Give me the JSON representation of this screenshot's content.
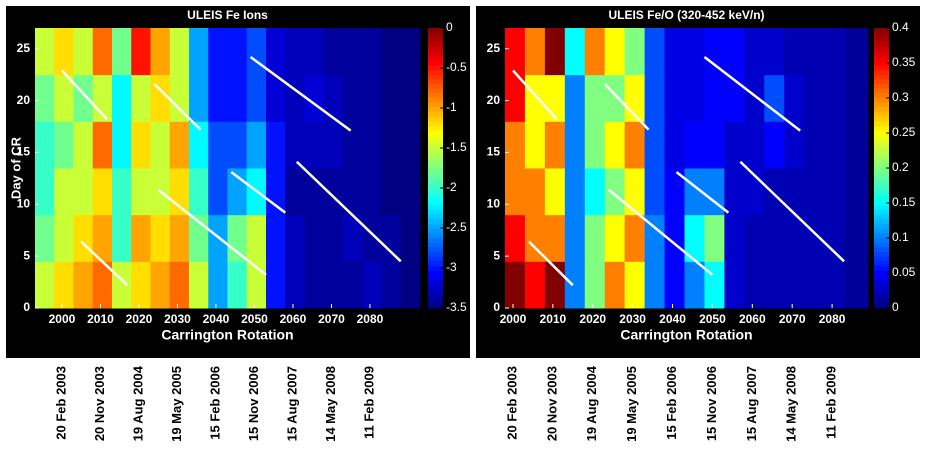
{
  "chart_data": [
    {
      "type": "heatmap",
      "title": "ULEIS Fe Ions",
      "xlabel": "Carrington Rotation",
      "ylabel": "Day of CR",
      "colormap": "jet",
      "xlim": [
        1993,
        2093
      ],
      "ylim": [
        0,
        27
      ],
      "xticks": [
        2000,
        2010,
        2020,
        2030,
        2040,
        2050,
        2060,
        2070,
        2080
      ],
      "yticks": [
        0,
        5,
        10,
        15,
        20,
        25
      ],
      "zlim": [
        -3.5,
        0
      ],
      "zticks": [
        0,
        -0.5,
        -1,
        -1.5,
        -2,
        -2.5,
        -3,
        -3.5
      ],
      "xbins": [
        1993,
        1998,
        2003,
        2008,
        2013,
        2018,
        2023,
        2028,
        2033,
        2038,
        2043,
        2048,
        2053,
        2058,
        2063,
        2068,
        2073,
        2078,
        2083,
        2088,
        2093
      ],
      "ybins": [
        0,
        4.5,
        9,
        13.5,
        18,
        22.5,
        27
      ],
      "z": [
        [
          -1.5,
          -1.2,
          -1,
          -0.8,
          -1.5,
          -1.2,
          -1,
          -0.8,
          -1.5,
          -2.5,
          -2,
          -1.5,
          -3,
          -3.3,
          -3.4,
          -3.4,
          -3.4,
          -3.3,
          -3.4,
          -3.5
        ],
        [
          -1.8,
          -1.5,
          -1.2,
          -1,
          -2,
          -1,
          -1.2,
          -1,
          -1.8,
          -2.5,
          -1.8,
          -1.5,
          -3,
          -3.3,
          -3.4,
          -3.4,
          -3.3,
          -3.4,
          -3.4,
          -3.5
        ],
        [
          -2,
          -1.5,
          -1.5,
          -1.2,
          -2,
          -1.5,
          -1.5,
          -1.2,
          -2,
          -2.8,
          -2.5,
          -2.2,
          -3,
          -3.4,
          -3.4,
          -3.4,
          -3.4,
          -3.4,
          -3.5,
          -3.5
        ],
        [
          -2,
          -1.8,
          -1.5,
          -0.8,
          -2.2,
          -1.2,
          -1.5,
          -1,
          -2.2,
          -2.8,
          -2.8,
          -2.5,
          -3,
          -3.3,
          -3.3,
          -3.3,
          -3.4,
          -3.4,
          -3.5,
          -3.5
        ],
        [
          -1.8,
          -1.5,
          -1.8,
          -1.5,
          -2.2,
          -1.5,
          -1.2,
          -1.5,
          -2.5,
          -3,
          -3,
          -2.8,
          -3.2,
          -3.3,
          -3.2,
          -3.3,
          -3.4,
          -3.4,
          -3.5,
          -3.5
        ],
        [
          -1.5,
          -1.2,
          -1.5,
          -0.8,
          -1.8,
          -0.5,
          -1,
          -1.5,
          -2.5,
          -3,
          -3,
          -2.8,
          -3.2,
          -3.3,
          -3.3,
          -3.4,
          -3.4,
          -3.4,
          -3.5,
          -3.5
        ]
      ],
      "line_color": "#ffffff",
      "overlay_lines": [
        {
          "x": [
            2000,
            2011.7
          ],
          "y": [
            22.9,
            18.2
          ]
        },
        {
          "x": [
            2024,
            2036
          ],
          "y": [
            21.6,
            17.2
          ]
        },
        {
          "x": [
            2049,
            2075
          ],
          "y": [
            24.2,
            17.1
          ]
        },
        {
          "x": [
            2005,
            2017
          ],
          "y": [
            6.4,
            2.2
          ]
        },
        {
          "x": [
            2025,
            2053
          ],
          "y": [
            11.4,
            3.2
          ]
        },
        {
          "x": [
            2044,
            2058
          ],
          "y": [
            13.1,
            9.2
          ]
        },
        {
          "x": [
            2061,
            2088
          ],
          "y": [
            14.1,
            4.5
          ]
        }
      ],
      "date_labels": [
        {
          "value": 2000,
          "label": "20 Feb 2003"
        },
        {
          "value": 2010,
          "label": "20 Nov 2003"
        },
        {
          "value": 2020,
          "label": "19 Aug 2004"
        },
        {
          "value": 2030,
          "label": "19 May 2005"
        },
        {
          "value": 2040,
          "label": "15 Feb 2006"
        },
        {
          "value": 2050,
          "label": "15 Nov 2006"
        },
        {
          "value": 2060,
          "label": "15 Aug 2007"
        },
        {
          "value": 2070,
          "label": "14 May 2008"
        },
        {
          "value": 2080,
          "label": "11 Feb 2009"
        }
      ]
    },
    {
      "type": "heatmap",
      "title": "ULEIS Fe/O (320-452 keV/n)",
      "xlabel": "Carrington Rotation",
      "colormap": "jet",
      "xlim": [
        1998,
        2089
      ],
      "ylim": [
        0,
        27
      ],
      "xticks": [
        2000,
        2010,
        2020,
        2030,
        2040,
        2050,
        2060,
        2070,
        2080
      ],
      "yticks": [
        0,
        5,
        10,
        15,
        20,
        25
      ],
      "zlim": [
        0,
        0.4
      ],
      "zticks": [
        0.4,
        0.35,
        0.3,
        0.25,
        0.2,
        0.15,
        0.1,
        0.05,
        0
      ],
      "xbins": [
        1998,
        2003,
        2008,
        2013,
        2018,
        2023,
        2028,
        2033,
        2038,
        2043,
        2048,
        2053,
        2058,
        2063,
        2068,
        2073,
        2078,
        2083,
        2089
      ],
      "ybins": [
        0,
        4.5,
        9,
        13.5,
        18,
        22.5,
        27
      ],
      "z": [
        [
          0.4,
          0.35,
          0.4,
          0.1,
          0.2,
          0.3,
          0.25,
          0.1,
          0.05,
          0.1,
          0.15,
          0.03,
          0.02,
          0.02,
          0.02,
          0.02,
          0.02,
          0.01
        ],
        [
          0.35,
          0.3,
          0.3,
          0.1,
          0.2,
          0.25,
          0.3,
          0.1,
          0.05,
          0.15,
          0.2,
          0.03,
          0.02,
          0.02,
          0.02,
          0.02,
          0.02,
          0.01
        ],
        [
          0.3,
          0.3,
          0.25,
          0.1,
          0.15,
          0.2,
          0.25,
          0.08,
          0.05,
          0.1,
          0.1,
          0.03,
          0.03,
          0.02,
          0.02,
          0.02,
          0.02,
          0.01
        ],
        [
          0.3,
          0.25,
          0.3,
          0.1,
          0.2,
          0.25,
          0.3,
          0.08,
          0.04,
          0.05,
          0.05,
          0.03,
          0.03,
          0.05,
          0.03,
          0.02,
          0.02,
          0.01
        ],
        [
          0.35,
          0.25,
          0.25,
          0.1,
          0.2,
          0.2,
          0.25,
          0.08,
          0.04,
          0.04,
          0.05,
          0.05,
          0.03,
          0.08,
          0.03,
          0.02,
          0.02,
          0.01
        ],
        [
          0.35,
          0.3,
          0.4,
          0.15,
          0.3,
          0.25,
          0.2,
          0.08,
          0.04,
          0.04,
          0.05,
          0.05,
          0.03,
          0.03,
          0.02,
          0.02,
          0.02,
          0.01
        ]
      ],
      "line_color": "#ffffff",
      "overlay_lines": [
        {
          "x": [
            2000,
            2011
          ],
          "y": [
            22.9,
            18.2
          ]
        },
        {
          "x": [
            2023,
            2034
          ],
          "y": [
            21.6,
            17.2
          ]
        },
        {
          "x": [
            2048,
            2072
          ],
          "y": [
            24.2,
            17.1
          ]
        },
        {
          "x": [
            2004,
            2015
          ],
          "y": [
            6.4,
            2.2
          ]
        },
        {
          "x": [
            2024,
            2050
          ],
          "y": [
            11.4,
            3.2
          ]
        },
        {
          "x": [
            2041,
            2054
          ],
          "y": [
            13.1,
            9.2
          ]
        },
        {
          "x": [
            2057,
            2083
          ],
          "y": [
            14.1,
            4.5
          ]
        }
      ],
      "date_labels": [
        {
          "value": 2000,
          "label": "20 Feb 2003"
        },
        {
          "value": 2010,
          "label": "20 Nov 2003"
        },
        {
          "value": 2020,
          "label": "19 Aug 2004"
        },
        {
          "value": 2030,
          "label": "19 May 2005"
        },
        {
          "value": 2040,
          "label": "15 Feb 2006"
        },
        {
          "value": 2050,
          "label": "15 Nov 2006"
        },
        {
          "value": 2060,
          "label": "15 Aug 2007"
        },
        {
          "value": 2070,
          "label": "14 May 2008"
        },
        {
          "value": 2080,
          "label": "11 Feb 2009"
        }
      ]
    }
  ]
}
